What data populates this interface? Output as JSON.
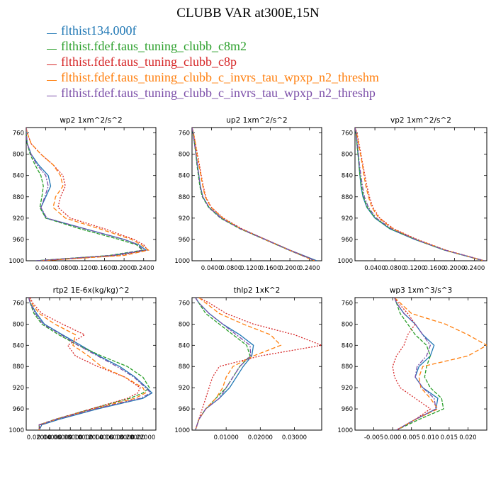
{
  "title": "CLUBB VAR at300E,15N",
  "legend": [
    {
      "label": "flthist134.000f",
      "color": "#1f77b4"
    },
    {
      "label": "flthist.fdef.taus_tuning_clubb_c8m2",
      "color": "#2ca02c"
    },
    {
      "label": "flthist.fdef.taus_tuning_clubb_c8p",
      "color": "#d62728"
    },
    {
      "label": "flthist.fdef.taus_tuning_clubb_c_invrs_tau_wpxp_n2_threshm",
      "color": "#ff7f0e"
    },
    {
      "label": "flthist.fdef.taus_tuning_clubb_c_invrs_tau_wpxp_n2_threshp",
      "color": "#7b4ea8"
    }
  ],
  "chart_data": [
    {
      "type": "line",
      "title": "wp2  1xm^2/s^2",
      "ylim": [
        1000,
        750
      ],
      "yticks": [
        "760",
        "800",
        "840",
        "880",
        "920",
        "960",
        "1000"
      ],
      "xlim": [
        0.0,
        0.265
      ],
      "xticks": [
        0.04,
        0.08,
        0.12,
        0.16,
        0.2,
        0.24
      ],
      "xtick_labels": [
        "0.0400",
        "0.0800",
        "0.1200",
        "0.1600",
        "0.2000",
        "0.2400"
      ],
      "y": [
        750,
        760,
        780,
        800,
        820,
        840,
        860,
        880,
        900,
        920,
        940,
        960,
        970,
        980,
        990,
        1000
      ],
      "series": [
        {
          "values": [
            0.0,
            0.0,
            0.002,
            0.01,
            0.025,
            0.045,
            0.05,
            0.04,
            0.03,
            0.04,
            0.12,
            0.2,
            0.23,
            0.245,
            0.18,
            0.02
          ]
        },
        {
          "values": [
            0.0,
            0.0,
            0.002,
            0.008,
            0.018,
            0.03,
            0.035,
            0.032,
            0.028,
            0.04,
            0.11,
            0.19,
            0.225,
            0.238,
            0.17,
            0.02
          ]
        },
        {
          "values": [
            0.0,
            0.002,
            0.01,
            0.03,
            0.055,
            0.075,
            0.08,
            0.07,
            0.065,
            0.09,
            0.16,
            0.22,
            0.24,
            0.248,
            0.19,
            0.03
          ]
        },
        {
          "values": [
            0.0,
            0.002,
            0.01,
            0.03,
            0.055,
            0.07,
            0.075,
            0.06,
            0.055,
            0.08,
            0.15,
            0.215,
            0.235,
            0.25,
            0.2,
            0.03
          ]
        },
        {
          "values": [
            0.0,
            0.0,
            0.002,
            0.01,
            0.022,
            0.04,
            0.045,
            0.038,
            0.03,
            0.042,
            0.12,
            0.2,
            0.228,
            0.24,
            0.175,
            0.02
          ]
        }
      ]
    },
    {
      "type": "line",
      "title": "up2  1xm^2/s^2",
      "ylim": [
        1000,
        750
      ],
      "yticks": [
        "760",
        "800",
        "840",
        "880",
        "920",
        "960",
        "1000"
      ],
      "xlim": [
        0.0,
        0.265
      ],
      "xticks": [
        0.04,
        0.08,
        0.12,
        0.16,
        0.2,
        0.24
      ],
      "xtick_labels": [
        "0.0400",
        "0.0800",
        "0.1200",
        "0.1600",
        "0.2000",
        "0.2400"
      ],
      "y": [
        750,
        760,
        780,
        800,
        820,
        840,
        860,
        880,
        900,
        920,
        940,
        960,
        980,
        1000
      ],
      "series": [
        {
          "values": [
            0.0,
            0.002,
            0.005,
            0.008,
            0.011,
            0.014,
            0.017,
            0.022,
            0.035,
            0.06,
            0.1,
            0.15,
            0.2,
            0.255
          ]
        },
        {
          "values": [
            0.0,
            0.002,
            0.005,
            0.008,
            0.01,
            0.013,
            0.016,
            0.021,
            0.034,
            0.058,
            0.098,
            0.148,
            0.198,
            0.25
          ]
        },
        {
          "values": [
            0.0,
            0.003,
            0.007,
            0.011,
            0.015,
            0.019,
            0.023,
            0.028,
            0.04,
            0.064,
            0.102,
            0.15,
            0.2,
            0.252
          ]
        },
        {
          "values": [
            0.0,
            0.003,
            0.007,
            0.01,
            0.014,
            0.018,
            0.022,
            0.027,
            0.039,
            0.063,
            0.1,
            0.149,
            0.199,
            0.25
          ]
        },
        {
          "values": [
            0.0,
            0.002,
            0.005,
            0.008,
            0.011,
            0.014,
            0.017,
            0.022,
            0.035,
            0.059,
            0.099,
            0.149,
            0.199,
            0.252
          ]
        }
      ]
    },
    {
      "type": "line",
      "title": "vp2  1xm^2/s^2",
      "ylim": [
        1000,
        750
      ],
      "yticks": [
        "760",
        "800",
        "840",
        "880",
        "920",
        "960",
        "1000"
      ],
      "xlim": [
        0.0,
        0.265
      ],
      "xticks": [
        0.04,
        0.08,
        0.12,
        0.16,
        0.2,
        0.24
      ],
      "xtick_labels": [
        "0.0400",
        "0.0800",
        "0.1200",
        "0.1600",
        "0.2000",
        "0.2400"
      ],
      "y": [
        750,
        760,
        780,
        800,
        820,
        840,
        860,
        880,
        900,
        920,
        940,
        960,
        980,
        1000
      ],
      "series": [
        {
          "values": [
            0.0,
            0.002,
            0.004,
            0.006,
            0.008,
            0.01,
            0.012,
            0.016,
            0.024,
            0.04,
            0.07,
            0.12,
            0.18,
            0.26
          ]
        },
        {
          "values": [
            0.0,
            0.002,
            0.004,
            0.006,
            0.008,
            0.01,
            0.013,
            0.017,
            0.025,
            0.041,
            0.071,
            0.121,
            0.18,
            0.258
          ]
        },
        {
          "values": [
            0.0,
            0.004,
            0.008,
            0.012,
            0.016,
            0.02,
            0.024,
            0.029,
            0.036,
            0.05,
            0.078,
            0.125,
            0.183,
            0.26
          ]
        },
        {
          "values": [
            0.0,
            0.003,
            0.007,
            0.011,
            0.015,
            0.018,
            0.022,
            0.027,
            0.034,
            0.048,
            0.076,
            0.123,
            0.182,
            0.259
          ]
        },
        {
          "values": [
            0.0,
            0.002,
            0.005,
            0.007,
            0.009,
            0.012,
            0.015,
            0.019,
            0.027,
            0.043,
            0.073,
            0.122,
            0.181,
            0.26
          ]
        }
      ]
    },
    {
      "type": "line",
      "title": "rtp2  1E-6x(kg/kg)^2",
      "ylim": [
        1000,
        750
      ],
      "yticks": [
        "760",
        "800",
        "840",
        "880",
        "920",
        "960",
        "1000"
      ],
      "xlim": [
        0.0,
        1.0
      ],
      "xticks": [
        0.1,
        0.18,
        0.26,
        0.34,
        0.42,
        0.5,
        0.58,
        0.66,
        0.74,
        0.82,
        0.9
      ],
      "xtick_labels": [
        "0.02000",
        "0.04000",
        "0.06000",
        "0.08000",
        "0.10000",
        "0.12000",
        "0.14000",
        "0.16000",
        "0.18000",
        "0.20000",
        "0.22000"
      ],
      "y": [
        750,
        760,
        780,
        800,
        820,
        840,
        860,
        880,
        900,
        920,
        930,
        940,
        960,
        980,
        990,
        1000
      ],
      "series": [
        {
          "values": [
            0.02,
            0.03,
            0.08,
            0.14,
            0.28,
            0.42,
            0.56,
            0.72,
            0.84,
            0.93,
            0.97,
            0.9,
            0.55,
            0.25,
            0.12,
            0.1
          ]
        },
        {
          "values": [
            0.02,
            0.03,
            0.06,
            0.12,
            0.25,
            0.4,
            0.58,
            0.78,
            0.9,
            0.95,
            0.9,
            0.8,
            0.5,
            0.22,
            0.1,
            0.1
          ]
        },
        {
          "values": [
            0.03,
            0.05,
            0.12,
            0.28,
            0.45,
            0.32,
            0.38,
            0.55,
            0.76,
            0.88,
            0.86,
            0.78,
            0.5,
            0.22,
            0.11,
            0.1
          ]
        },
        {
          "values": [
            0.02,
            0.04,
            0.1,
            0.22,
            0.38,
            0.36,
            0.48,
            0.58,
            0.76,
            0.9,
            0.92,
            0.84,
            0.52,
            0.23,
            0.1,
            0.1
          ]
        },
        {
          "values": [
            0.02,
            0.03,
            0.07,
            0.13,
            0.27,
            0.4,
            0.55,
            0.7,
            0.83,
            0.92,
            0.96,
            0.88,
            0.53,
            0.23,
            0.1,
            0.1
          ]
        }
      ]
    },
    {
      "type": "line",
      "title": "thlp2  1xK^2",
      "ylim": [
        1000,
        750
      ],
      "yticks": [
        "760",
        "800",
        "840",
        "880",
        "920",
        "960",
        "1000"
      ],
      "xlim": [
        0.0,
        0.038
      ],
      "xticks": [
        0.01,
        0.02,
        0.03
      ],
      "xtick_labels": [
        "0.01000",
        "0.02000",
        "0.03000"
      ],
      "y": [
        750,
        760,
        780,
        800,
        820,
        840,
        860,
        880,
        900,
        920,
        940,
        960,
        980,
        1000
      ],
      "series": [
        {
          "values": [
            0.001,
            0.002,
            0.005,
            0.009,
            0.014,
            0.018,
            0.0175,
            0.015,
            0.013,
            0.011,
            0.008,
            0.004,
            0.002,
            0.001
          ]
        },
        {
          "values": [
            0.001,
            0.002,
            0.004,
            0.008,
            0.012,
            0.016,
            0.017,
            0.014,
            0.012,
            0.01,
            0.007,
            0.004,
            0.002,
            0.001
          ]
        },
        {
          "values": [
            0.002,
            0.005,
            0.01,
            0.018,
            0.03,
            0.038,
            0.02,
            0.008,
            0.006,
            0.005,
            0.004,
            0.003,
            0.002,
            0.001
          ]
        },
        {
          "values": [
            0.002,
            0.004,
            0.008,
            0.015,
            0.023,
            0.026,
            0.018,
            0.012,
            0.01,
            0.009,
            0.007,
            0.004,
            0.002,
            0.001
          ]
        },
        {
          "values": [
            0.001,
            0.002,
            0.005,
            0.009,
            0.013,
            0.017,
            0.0172,
            0.014,
            0.012,
            0.01,
            0.008,
            0.004,
            0.002,
            0.001
          ]
        }
      ]
    },
    {
      "type": "line",
      "title": "wp3  1xm^3/s^3",
      "ylim": [
        1000,
        750
      ],
      "yticks": [
        "760",
        "800",
        "840",
        "880",
        "920",
        "960",
        "1000"
      ],
      "xlim": [
        -0.01,
        0.025
      ],
      "xticks": [
        -0.005,
        0.0,
        0.005,
        0.01,
        0.015,
        0.02
      ],
      "xtick_labels": [
        "-0.005",
        "0.000",
        "0.005",
        "0.010",
        "0.015",
        "0.020"
      ],
      "y": [
        750,
        760,
        780,
        800,
        820,
        840,
        860,
        880,
        900,
        920,
        940,
        960,
        980,
        1000
      ],
      "series": [
        {
          "values": [
            0.0005,
            0.001,
            0.003,
            0.006,
            0.008,
            0.011,
            0.01,
            0.007,
            0.006,
            0.008,
            0.012,
            0.0115,
            0.006,
            0.001
          ]
        },
        {
          "values": [
            0.0005,
            0.001,
            0.002,
            0.004,
            0.006,
            0.009,
            0.01,
            0.009,
            0.0085,
            0.01,
            0.013,
            0.0135,
            0.007,
            0.001
          ]
        },
        {
          "values": [
            0.0005,
            0.0015,
            0.004,
            0.006,
            0.004,
            0.003,
            0.001,
            0.0,
            0.0005,
            0.002,
            0.006,
            0.01,
            0.006,
            0.001
          ]
        },
        {
          "values": [
            0.0005,
            0.002,
            0.005,
            0.014,
            0.02,
            0.025,
            0.02,
            0.008,
            0.007,
            0.0075,
            0.01,
            0.012,
            0.006,
            0.001
          ]
        },
        {
          "values": [
            0.0005,
            0.001,
            0.003,
            0.006,
            0.008,
            0.01,
            0.009,
            0.0065,
            0.006,
            0.008,
            0.011,
            0.0115,
            0.006,
            0.001
          ]
        }
      ]
    }
  ]
}
